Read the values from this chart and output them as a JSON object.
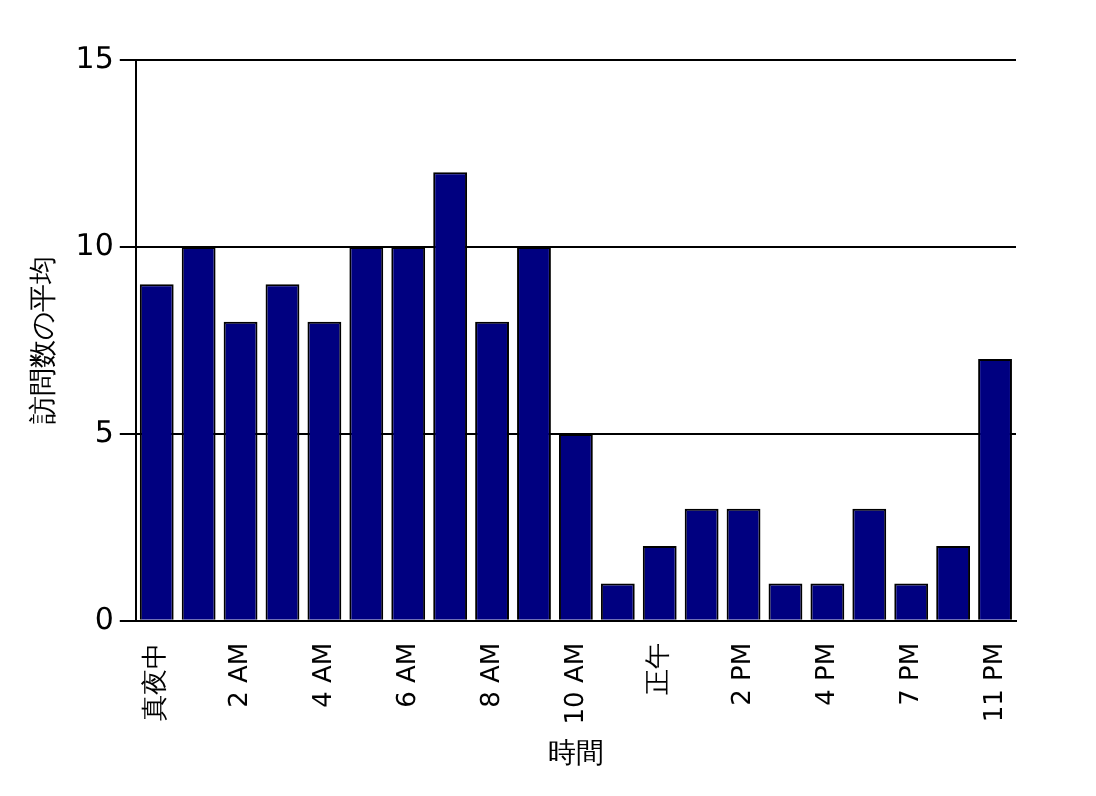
{
  "chart_data": {
    "type": "bar",
    "xlabel": "時間",
    "ylabel": "訪問数の平均",
    "categories": [
      "真夜中",
      null,
      "2 AM",
      null,
      "4 AM",
      null,
      "6 AM",
      null,
      "8 AM",
      null,
      "10 AM",
      null,
      "正午",
      null,
      "2 PM",
      null,
      "4 PM",
      null,
      "7 PM",
      null,
      "11 PM"
    ],
    "values": [
      9,
      10,
      8,
      9,
      8,
      10,
      10,
      12,
      8,
      10,
      5,
      1,
      2,
      3,
      3,
      1,
      1,
      3,
      1,
      2,
      7
    ],
    "color": "#000080",
    "ylim": [
      0,
      15
    ],
    "yticks": [
      0,
      5,
      10,
      15
    ],
    "grid": "y",
    "legend": false
  }
}
